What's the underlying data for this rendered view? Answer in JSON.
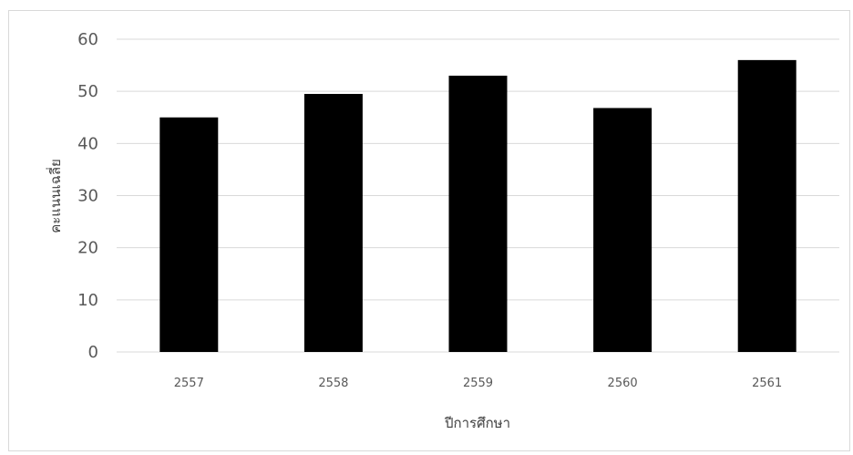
{
  "chart_data": {
    "type": "bar",
    "title": "",
    "xlabel": "ปีการศึกษา",
    "ylabel": "คะแนนเฉลี่ย",
    "categories": [
      "2557",
      "2558",
      "2559",
      "2560",
      "2561"
    ],
    "values": [
      45,
      49.5,
      53,
      46.8,
      56
    ],
    "ylim": [
      0,
      60
    ],
    "yticks": [
      "0",
      "10",
      "20",
      "30",
      "40",
      "50",
      "60"
    ],
    "grid": true,
    "legend": "none",
    "bar_color": "#000000",
    "grid_color": "#d9d9d9"
  }
}
